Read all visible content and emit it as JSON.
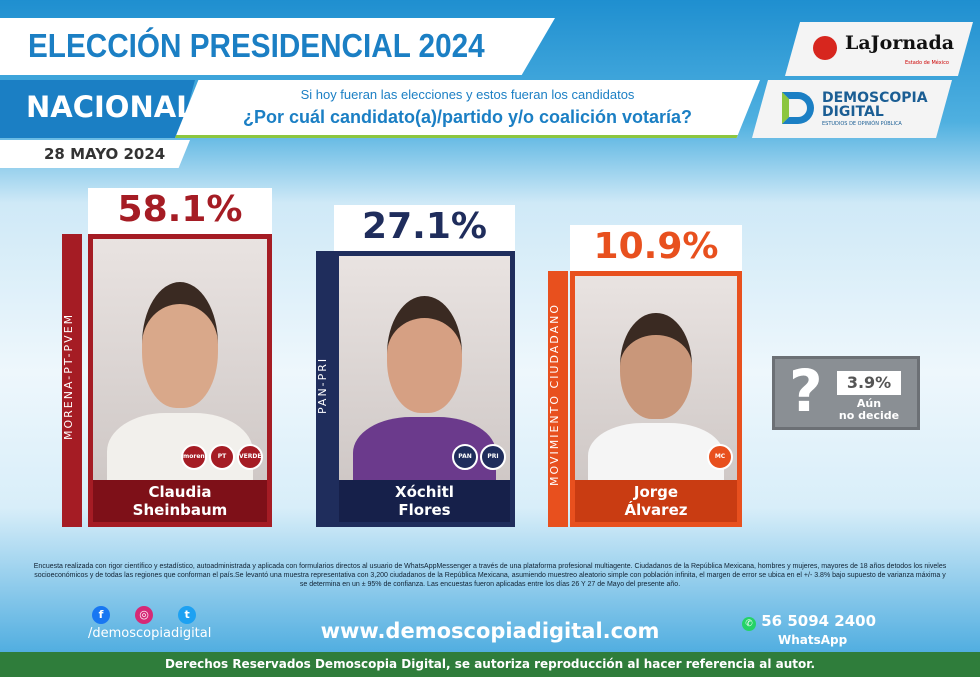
{
  "header": {
    "title": "ELECCIÓN PRESIDENCIAL 2024",
    "scope": "NACIONAL",
    "question_intro": "Si hoy fueran las elecciones y estos fueran los candidatos",
    "question": "¿Por cuál candidato(a)/partido y/o coalición votaría?",
    "date": "28 MAYO 2024"
  },
  "logos": {
    "jornada": "LaJornada",
    "jornada_sub": "Estado de México",
    "demoscopia_1": "DEMOSCOPIA",
    "demoscopia_2": "DIGITAL",
    "demoscopia_sub": "ESTUDIOS DE OPINIÓN PÚBLICA"
  },
  "chart_data": {
    "type": "bar",
    "categories": [
      "Claudia Sheinbaum",
      "Xóchitl Flores",
      "Jorge Álvarez",
      "Aún no decide"
    ],
    "values": [
      58.1,
      27.1,
      10.9,
      3.9
    ],
    "unit": "%",
    "labels": [
      "58.1%",
      "27.1%",
      "10.9%",
      "3.9%"
    ],
    "candidates": [
      {
        "first": "Claudia",
        "last": "Sheinbaum",
        "party": "MORENA-PT-PVEM",
        "pct": "58.1%",
        "value": 58.1,
        "color": "#a51c24",
        "dark": "#7e1018",
        "party_badges": [
          "morena",
          "PT",
          "VERDE"
        ]
      },
      {
        "first": "Xóchitl",
        "last": "Flores",
        "party": "PAN-PRI",
        "pct": "27.1%",
        "value": 27.1,
        "color": "#1f2d5c",
        "dark": "#16204a",
        "party_badges": [
          "PAN",
          "PRI"
        ]
      },
      {
        "first": "Jorge",
        "last": "Álvarez",
        "party": "MOVIMIENTO CIUDADANO",
        "pct": "10.9%",
        "value": 10.9,
        "color": "#e8501e",
        "dark": "#c93c12",
        "party_badges": [
          "MC"
        ]
      }
    ],
    "undecided": {
      "pct": "3.9%",
      "value": 3.9,
      "label_1": "Aún",
      "label_2": "no decide",
      "icon": "question-mark"
    }
  },
  "footer": {
    "methodology": "Encuesta realizada con rigor científico y estadístico, autoadministrada y aplicada con formularios directos al usuario de WhatsAppMessenger a través de una plataforma profesional multiagente. Ciudadanos de la República Mexicana, hombres y mujeres, mayores de 18 años detodos los niveles socioeconómicos y de todas las regiones que conforman el país.Se levantó una muestra representativa con 3,200 ciudadanos de la República Mexicana, asumiendo muestreo aleatorio simple con población infinita, el margen de error se ubica en el +/- 3.8% bajo supuesto de varianza máxima y se determina en un ± 95% de confianza. Las encuestas fueron aplicadas entre los días 26 Y 27 de Mayo del presente año.",
    "social_handle": "/demoscopiadigital",
    "website": "www.demoscopiadigital.com",
    "phone": "56 5094 2400",
    "phone_label": "WhatsApp",
    "rights": "Derechos Reservados Demoscopia Digital, se autoriza reproducción al hacer referencia al autor."
  }
}
